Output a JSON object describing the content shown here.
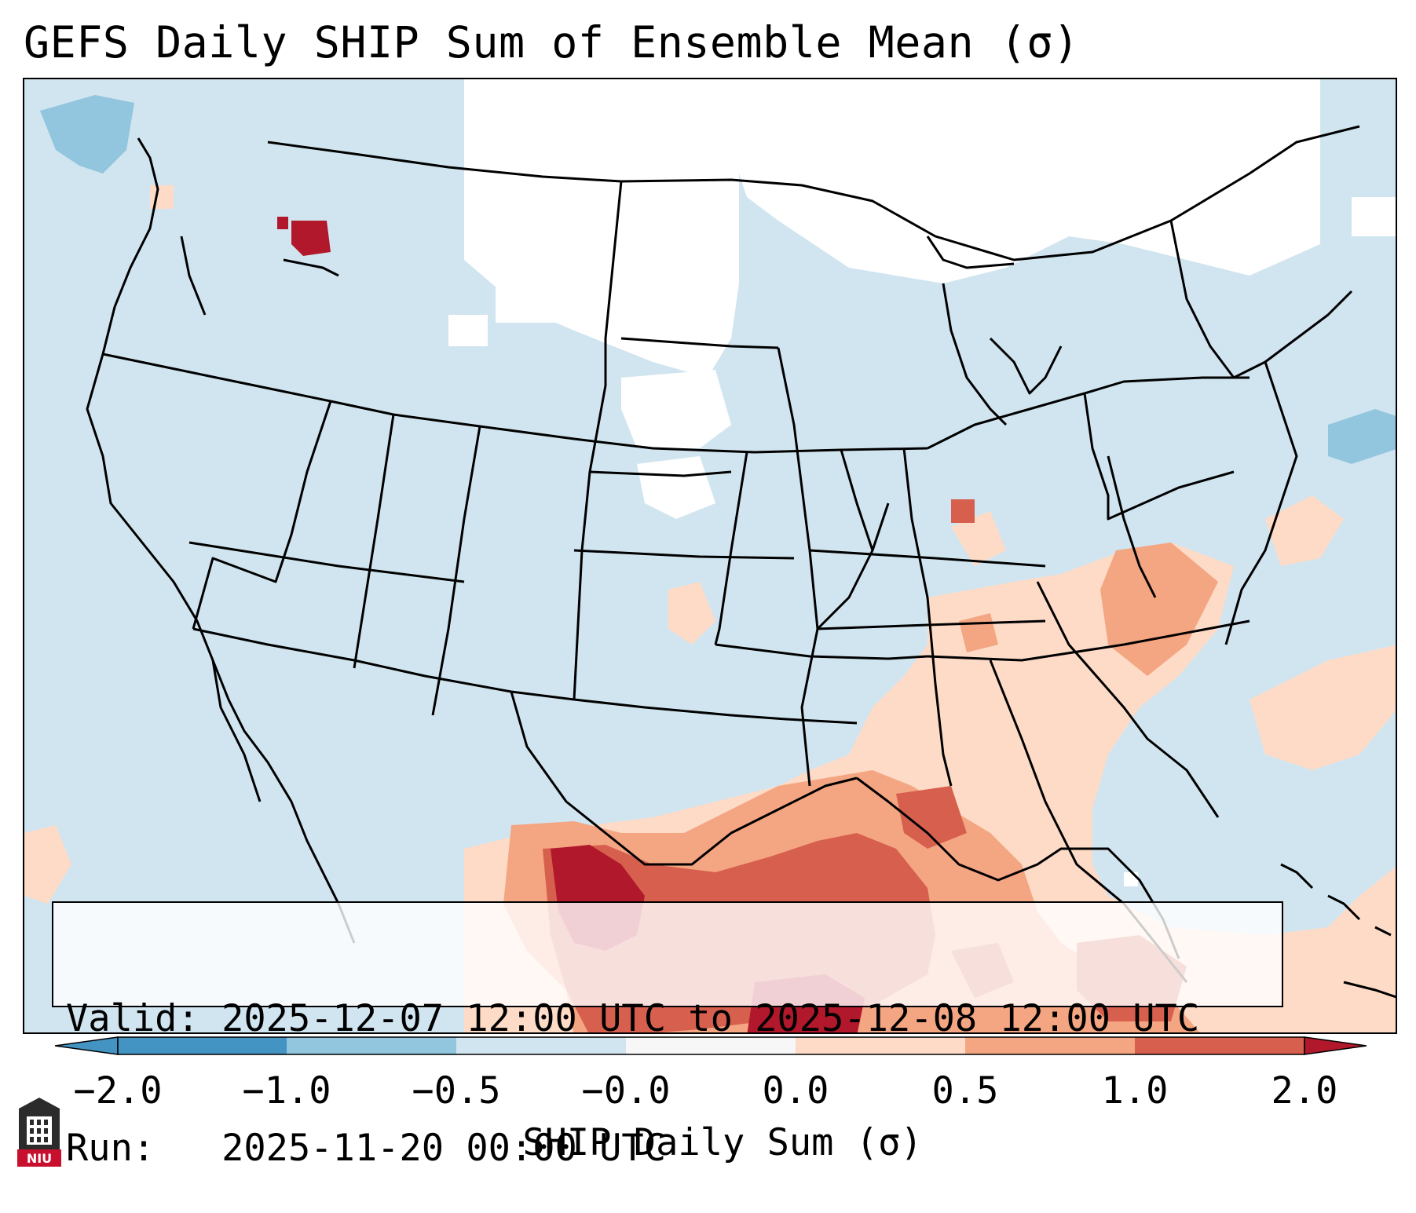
{
  "title": "GEFS Daily SHIP Sum of Ensemble Mean (σ)",
  "info": {
    "valid_label": "Valid:",
    "valid_value": "2025-12-07 12:00 UTC to 2025-12-08 12:00 UTC",
    "run_label": "Run:",
    "run_value": "2025-11-20 00:00 UTC"
  },
  "colorbar": {
    "label": "SHIP Daily Sum (σ)",
    "ticks": [
      "−2.0",
      "−1.0",
      "−0.5",
      "−0.0",
      "0.0",
      "0.5",
      "1.0",
      "2.0"
    ],
    "colors": [
      "#4393c3",
      "#92c5de",
      "#d1e5f0",
      "#f7f7f7",
      "#fddbc7",
      "#f4a582",
      "#d6604d",
      "#b2182b"
    ],
    "extend": "both"
  },
  "map": {
    "background_color": "#d1e5f0",
    "neutral_color": "#ffffff",
    "border_color": "#000000",
    "region": "Contiguous United States, northern Mexico, Gulf of Mexico"
  },
  "logo": {
    "text": "NIU",
    "icon": "university-tower-icon"
  }
}
